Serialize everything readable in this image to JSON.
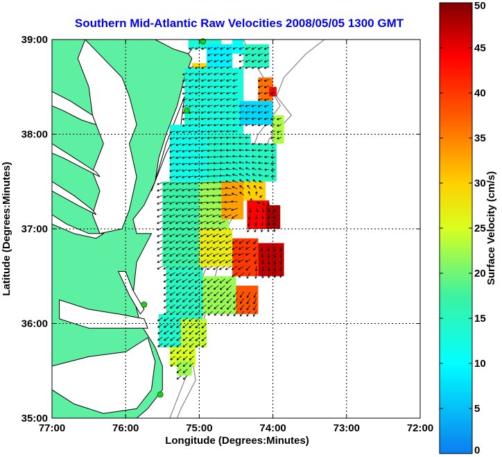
{
  "chart_data": {
    "type": "heatmap",
    "title": "Southern Mid-Atlantic Raw Velocities 2008/05/05 1300 GMT",
    "xlabel": "Longitude (Degrees:Minutes)",
    "ylabel": "Latitude (Degrees:Minutes)",
    "xlim": [
      -77,
      -72
    ],
    "ylim": [
      35,
      39
    ],
    "x_ticks": [
      {
        "value": -77,
        "label": "77:00"
      },
      {
        "value": -76,
        "label": "76:00"
      },
      {
        "value": -75,
        "label": "75:00"
      },
      {
        "value": -74,
        "label": "74:00"
      },
      {
        "value": -73,
        "label": "73:00"
      },
      {
        "value": -72,
        "label": "72:00"
      }
    ],
    "y_ticks": [
      {
        "value": 35,
        "label": "35:00"
      },
      {
        "value": 36,
        "label": "36:00"
      },
      {
        "value": 37,
        "label": "37:00"
      },
      {
        "value": 38,
        "label": "38:00"
      },
      {
        "value": 39,
        "label": "39:00"
      }
    ],
    "grid": true,
    "colorbar": {
      "label": "Surface Velocity (cm/s)",
      "min": 0,
      "max": 50,
      "ticks": [
        {
          "value": 0,
          "label": "0"
        },
        {
          "value": 5,
          "label": "5"
        },
        {
          "value": 10,
          "label": "10"
        },
        {
          "value": 15,
          "label": "15"
        },
        {
          "value": 20,
          "label": "20"
        },
        {
          "value": 25,
          "label": "25"
        },
        {
          "value": 30,
          "label": "30"
        },
        {
          "value": 35,
          "label": "35"
        },
        {
          "value": 40,
          "label": "40"
        },
        {
          "value": 45,
          "label": "45"
        },
        {
          "value": 50,
          "label": "50"
        }
      ]
    },
    "colors": {
      "land": "#5ef0a2",
      "coast": "#000000",
      "bathymetry": "#8c8c8c",
      "station": "#22cc22",
      "arrow": "#000000",
      "title": "#0000ee"
    },
    "velocity_regions": [
      {
        "lon": [
          -75.15,
          -74.7
        ],
        "lat": [
          38.9,
          39.0
        ],
        "value": 13
      },
      {
        "lon": [
          -74.9,
          -74.55
        ],
        "lat": [
          38.7,
          38.95
        ],
        "value": 9
      },
      {
        "lon": [
          -74.55,
          -74.4
        ],
        "lat": [
          38.85,
          39.0
        ],
        "value": 10
      },
      {
        "lon": [
          -74.4,
          -74.05
        ],
        "lat": [
          38.7,
          38.95
        ],
        "value": 15
      },
      {
        "lon": [
          -75.1,
          -74.9
        ],
        "lat": [
          38.6,
          38.75
        ],
        "value": 29
      },
      {
        "lon": [
          -74.2,
          -74.0
        ],
        "lat": [
          38.35,
          38.6
        ],
        "value": 36
      },
      {
        "lon": [
          -74.05,
          -73.95
        ],
        "lat": [
          38.4,
          38.5
        ],
        "value": 44
      },
      {
        "lon": [
          -75.2,
          -74.4
        ],
        "lat": [
          38.0,
          38.7
        ],
        "value": 13
      },
      {
        "lon": [
          -74.45,
          -74.0
        ],
        "lat": [
          38.1,
          38.35
        ],
        "value": 7
      },
      {
        "lon": [
          -74.0,
          -73.85
        ],
        "lat": [
          37.9,
          38.2
        ],
        "value": 23
      },
      {
        "lon": [
          -75.4,
          -74.9
        ],
        "lat": [
          37.5,
          38.1
        ],
        "value": 12
      },
      {
        "lon": [
          -74.9,
          -74.3
        ],
        "lat": [
          37.5,
          38.0
        ],
        "value": 14
      },
      {
        "lon": [
          -74.3,
          -73.95
        ],
        "lat": [
          37.5,
          37.9
        ],
        "value": 15
      },
      {
        "lon": [
          -75.5,
          -75.0
        ],
        "lat": [
          36.6,
          37.5
        ],
        "value": 17
      },
      {
        "lon": [
          -75.0,
          -74.6
        ],
        "lat": [
          37.0,
          37.5
        ],
        "value": 22
      },
      {
        "lon": [
          -74.7,
          -74.4
        ],
        "lat": [
          37.1,
          37.5
        ],
        "value": 33
      },
      {
        "lon": [
          -74.4,
          -74.1
        ],
        "lat": [
          37.3,
          37.5
        ],
        "value": 30
      },
      {
        "lon": [
          -74.35,
          -74.05
        ],
        "lat": [
          37.0,
          37.3
        ],
        "value": 44
      },
      {
        "lon": [
          -74.1,
          -73.9
        ],
        "lat": [
          37.0,
          37.25
        ],
        "value": 48
      },
      {
        "lon": [
          -75.0,
          -74.55
        ],
        "lat": [
          36.6,
          37.0
        ],
        "value": 27
      },
      {
        "lon": [
          -74.55,
          -74.2
        ],
        "lat": [
          36.5,
          36.9
        ],
        "value": 40
      },
      {
        "lon": [
          -74.2,
          -73.85
        ],
        "lat": [
          36.5,
          36.85
        ],
        "value": 47
      },
      {
        "lon": [
          -75.45,
          -74.95
        ],
        "lat": [
          36.0,
          36.6
        ],
        "value": 15
      },
      {
        "lon": [
          -74.95,
          -74.5
        ],
        "lat": [
          36.1,
          36.5
        ],
        "value": 22
      },
      {
        "lon": [
          -74.5,
          -74.2
        ],
        "lat": [
          36.1,
          36.4
        ],
        "value": 38
      },
      {
        "lon": [
          -75.55,
          -75.25
        ],
        "lat": [
          35.75,
          36.1
        ],
        "value": 14
      },
      {
        "lon": [
          -75.25,
          -74.9
        ],
        "lat": [
          35.75,
          36.05
        ],
        "value": 24
      },
      {
        "lon": [
          -75.4,
          -75.05
        ],
        "lat": [
          35.55,
          35.75
        ],
        "value": 25
      },
      {
        "lon": [
          -75.3,
          -75.1
        ],
        "lat": [
          35.45,
          35.6
        ],
        "value": 22
      }
    ],
    "velocity_field": {
      "lon_range": [
        -75.5,
        -73.85
      ],
      "lat_range": [
        35.45,
        38.95
      ],
      "centers": [
        {
          "lon": -74.4,
          "lat": 37.25,
          "strength": 1.0
        },
        {
          "lon": -74.3,
          "lat": 36.6,
          "strength": 0.8
        }
      ],
      "background_flow": {
        "u": -0.35,
        "v": -0.25
      }
    },
    "stations": [
      {
        "lon": -74.95,
        "lat": 38.98
      },
      {
        "lon": -75.17,
        "lat": 38.25
      },
      {
        "lon": -75.75,
        "lat": 36.2
      },
      {
        "lon": -75.53,
        "lat": 35.25
      }
    ],
    "land": [
      {
        "name": "mainland",
        "coords": [
          [
            -77,
            39
          ],
          [
            -75.3,
            39
          ],
          [
            -75.1,
            38.8
          ],
          [
            -75.2,
            38.6
          ],
          [
            -75.3,
            38.3
          ],
          [
            -75.45,
            38.0
          ],
          [
            -75.55,
            37.75
          ],
          [
            -75.6,
            37.5
          ],
          [
            -75.75,
            37.25
          ],
          [
            -75.9,
            37.1
          ],
          [
            -75.85,
            36.95
          ],
          [
            -75.65,
            36.95
          ],
          [
            -75.85,
            36.65
          ],
          [
            -75.9,
            36.3
          ],
          [
            -75.8,
            36.0
          ],
          [
            -75.6,
            35.75
          ],
          [
            -75.5,
            35.55
          ],
          [
            -75.5,
            35.3
          ],
          [
            -75.7,
            35.1
          ],
          [
            -75.85,
            35.0
          ],
          [
            -77,
            35
          ]
        ]
      }
    ],
    "water": [
      {
        "name": "chesapeake-bay",
        "coords": [
          [
            -76.55,
            39.0
          ],
          [
            -76.3,
            38.8
          ],
          [
            -76.05,
            38.6
          ],
          [
            -75.95,
            38.4
          ],
          [
            -75.85,
            38.1
          ],
          [
            -75.95,
            37.9
          ],
          [
            -75.85,
            37.55
          ],
          [
            -75.95,
            37.2
          ],
          [
            -76.05,
            37.0
          ],
          [
            -76.35,
            36.95
          ],
          [
            -76.45,
            37.15
          ],
          [
            -76.35,
            37.4
          ],
          [
            -76.45,
            37.6
          ],
          [
            -76.3,
            37.9
          ],
          [
            -76.45,
            38.2
          ],
          [
            -76.5,
            38.5
          ],
          [
            -76.65,
            38.8
          ]
        ]
      },
      {
        "name": "potomac-river",
        "coords": [
          [
            -77.0,
            38.45
          ],
          [
            -76.75,
            38.35
          ],
          [
            -76.45,
            38.2
          ],
          [
            -76.4,
            38.1
          ],
          [
            -76.6,
            38.15
          ],
          [
            -76.85,
            38.25
          ],
          [
            -77.0,
            38.3
          ]
        ]
      },
      {
        "name": "rappahannock-river",
        "coords": [
          [
            -77.0,
            37.9
          ],
          [
            -76.7,
            37.75
          ],
          [
            -76.4,
            37.6
          ],
          [
            -76.35,
            37.55
          ],
          [
            -76.6,
            37.65
          ],
          [
            -76.85,
            37.75
          ],
          [
            -77.0,
            37.8
          ]
        ]
      },
      {
        "name": "york-river",
        "coords": [
          [
            -77.0,
            37.5
          ],
          [
            -76.7,
            37.35
          ],
          [
            -76.45,
            37.2
          ],
          [
            -76.4,
            37.15
          ],
          [
            -76.65,
            37.25
          ],
          [
            -77.0,
            37.4
          ]
        ]
      },
      {
        "name": "james-river",
        "coords": [
          [
            -77.0,
            37.15
          ],
          [
            -76.8,
            37.05
          ],
          [
            -76.5,
            36.95
          ],
          [
            -76.3,
            36.95
          ],
          [
            -76.4,
            36.9
          ],
          [
            -76.7,
            36.95
          ],
          [
            -77.0,
            37.05
          ]
        ]
      },
      {
        "name": "delaware-bay",
        "coords": [
          [
            -75.6,
            39.0
          ],
          [
            -75.35,
            38.9
          ],
          [
            -75.15,
            38.85
          ],
          [
            -75.05,
            38.95
          ],
          [
            -75.05,
            39.0
          ]
        ]
      },
      {
        "name": "eastern-shore-bays",
        "coords": [
          [
            -75.2,
            38.4
          ],
          [
            -75.25,
            38.1
          ],
          [
            -75.45,
            37.8
          ],
          [
            -75.65,
            37.4
          ],
          [
            -75.6,
            37.5
          ],
          [
            -75.45,
            37.9
          ],
          [
            -75.3,
            38.2
          ],
          [
            -75.2,
            38.4
          ]
        ]
      },
      {
        "name": "albemarle-sound",
        "coords": [
          [
            -76.9,
            36.25
          ],
          [
            -76.5,
            36.15
          ],
          [
            -76.1,
            36.1
          ],
          [
            -75.75,
            36.05
          ],
          [
            -75.7,
            35.95
          ],
          [
            -76.1,
            35.95
          ],
          [
            -76.5,
            35.95
          ],
          [
            -76.9,
            36.05
          ]
        ]
      },
      {
        "name": "currituck-sound",
        "coords": [
          [
            -76.1,
            36.55
          ],
          [
            -75.95,
            36.3
          ],
          [
            -75.8,
            36.1
          ],
          [
            -75.75,
            36.15
          ],
          [
            -75.9,
            36.35
          ],
          [
            -76.0,
            36.55
          ]
        ]
      },
      {
        "name": "pamlico-sound",
        "coords": [
          [
            -77.0,
            35.55
          ],
          [
            -76.5,
            35.65
          ],
          [
            -76.0,
            35.7
          ],
          [
            -75.7,
            35.85
          ],
          [
            -75.6,
            35.6
          ],
          [
            -75.65,
            35.3
          ],
          [
            -75.85,
            35.1
          ],
          [
            -76.3,
            35.05
          ],
          [
            -76.7,
            35.15
          ],
          [
            -77.0,
            35.3
          ]
        ]
      }
    ],
    "bathymetry": [
      {
        "coords": [
          [
            -74.4,
            39.0
          ],
          [
            -74.25,
            38.75
          ],
          [
            -74.05,
            38.5
          ],
          [
            -73.9,
            38.3
          ],
          [
            -74.2,
            38.0
          ],
          [
            -74.35,
            37.7
          ],
          [
            -74.6,
            37.3
          ],
          [
            -74.75,
            37.0
          ],
          [
            -74.85,
            36.7
          ],
          [
            -75.0,
            36.4
          ],
          [
            -75.05,
            36.1
          ],
          [
            -75.2,
            35.8
          ],
          [
            -75.15,
            35.5
          ],
          [
            -75.3,
            35.2
          ],
          [
            -75.4,
            35.0
          ]
        ]
      },
      {
        "coords": [
          [
            -73.3,
            39.0
          ],
          [
            -73.55,
            38.85
          ],
          [
            -73.85,
            38.6
          ],
          [
            -73.95,
            38.4
          ],
          [
            -73.75,
            38.2
          ],
          [
            -74.05,
            37.95
          ],
          [
            -74.2,
            37.65
          ],
          [
            -74.4,
            37.3
          ],
          [
            -74.6,
            37.05
          ],
          [
            -74.7,
            36.75
          ],
          [
            -74.8,
            36.45
          ],
          [
            -74.9,
            36.2
          ],
          [
            -74.95,
            35.95
          ],
          [
            -75.1,
            35.65
          ],
          [
            -75.05,
            35.4
          ],
          [
            -75.25,
            35.1
          ],
          [
            -75.3,
            35.0
          ]
        ]
      }
    ]
  }
}
